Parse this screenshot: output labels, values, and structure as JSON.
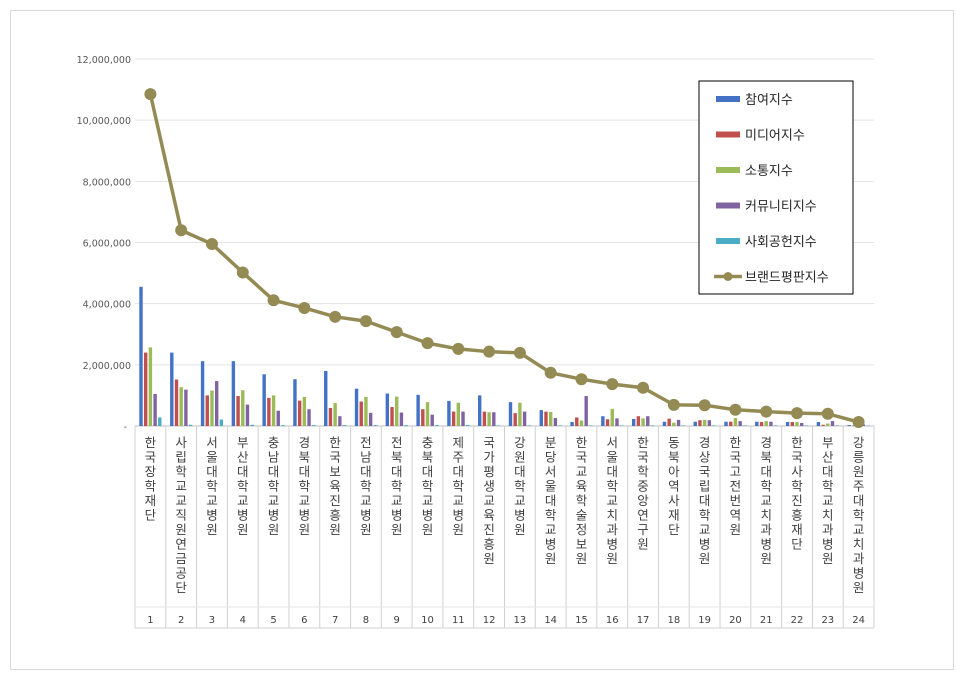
{
  "chart_data": {
    "type": "bar",
    "title": "",
    "xlabel": "",
    "ylabel": "",
    "ylim": [
      0,
      12000000
    ],
    "yticks": [
      "-",
      "2,000,000",
      "4,000,000",
      "6,000,000",
      "8,000,000",
      "10,000,000",
      "12,000,000"
    ],
    "grid": true,
    "legend_position": "right",
    "categories": [
      "1",
      "2",
      "3",
      "4",
      "5",
      "6",
      "7",
      "8",
      "9",
      "10",
      "11",
      "12",
      "13",
      "14",
      "15",
      "16",
      "17",
      "18",
      "19",
      "20",
      "21",
      "22",
      "23",
      "24"
    ],
    "category_names": [
      "한국장학재단",
      "사립학교교직원연금공단",
      "서울대학교병원",
      "부산대학교병원",
      "충남대학교병원",
      "경북대학교병원",
      "한국보육진흥원",
      "전남대학교병원",
      "전북대학교병원",
      "충북대학교병원",
      "제주대학교병원",
      "국가평생교육진흥원",
      "강원대학교병원",
      "분당서울대학교병원",
      "한국교육학술정보원",
      "서울대학교치과병원",
      "한국학중앙연구원",
      "동북아역사재단",
      "경상국립대학교병원",
      "한국고전번역원",
      "경북대학교치과병원",
      "한국사학진흥재단",
      "부산대학교치과병원",
      "강릉원주대학교치과병원"
    ],
    "series": [
      {
        "name": "참여지수",
        "type": "bar",
        "color": "#4472c4",
        "values": [
          4550000,
          2400000,
          2120000,
          2120000,
          1690000,
          1530000,
          1800000,
          1220000,
          1060000,
          1020000,
          820000,
          1000000,
          780000,
          520000,
          130000,
          320000,
          230000,
          140000,
          140000,
          140000,
          140000,
          130000,
          130000,
          30000
        ]
      },
      {
        "name": "미디어지수",
        "type": "bar",
        "color": "#c0504d",
        "values": [
          2400000,
          1520000,
          1000000,
          980000,
          920000,
          830000,
          590000,
          800000,
          620000,
          550000,
          470000,
          470000,
          420000,
          470000,
          280000,
          220000,
          320000,
          240000,
          190000,
          140000,
          130000,
          130000,
          40000,
          20000
        ]
      },
      {
        "name": "소통지수",
        "type": "bar",
        "color": "#9bbb59",
        "values": [
          2570000,
          1270000,
          1160000,
          1170000,
          1000000,
          950000,
          750000,
          950000,
          960000,
          780000,
          760000,
          450000,
          760000,
          460000,
          180000,
          560000,
          250000,
          110000,
          200000,
          260000,
          160000,
          130000,
          80000,
          20000
        ]
      },
      {
        "name": "커뮤니티지수",
        "type": "bar",
        "color": "#8064a2",
        "values": [
          1050000,
          1190000,
          1470000,
          700000,
          500000,
          550000,
          320000,
          430000,
          440000,
          370000,
          470000,
          450000,
          470000,
          260000,
          980000,
          250000,
          320000,
          200000,
          190000,
          160000,
          140000,
          100000,
          160000,
          50000
        ]
      },
      {
        "name": "사회공헌지수",
        "type": "bar",
        "color": "#4bacc6",
        "values": [
          280000,
          40000,
          210000,
          40000,
          30000,
          30000,
          30000,
          30000,
          30000,
          30000,
          30000,
          20000,
          20000,
          20000,
          20000,
          20000,
          20000,
          20000,
          20000,
          20000,
          20000,
          20000,
          20000,
          10000
        ]
      },
      {
        "name": "브랜드평판지수",
        "type": "line",
        "color": "#948a54",
        "values": [
          10850000,
          6400000,
          5950000,
          5020000,
          4110000,
          3860000,
          3570000,
          3430000,
          3070000,
          2710000,
          2520000,
          2430000,
          2390000,
          1740000,
          1530000,
          1370000,
          1250000,
          690000,
          680000,
          530000,
          470000,
          420000,
          400000,
          130000
        ]
      }
    ]
  }
}
